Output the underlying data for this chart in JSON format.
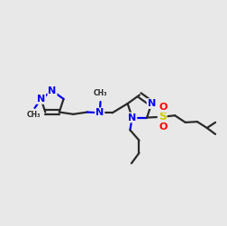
{
  "bg_color": "#e8e8e8",
  "bond_color": "#2a2a2a",
  "N_color": "#0000ee",
  "S_color": "#cccc00",
  "O_color": "#ff0000",
  "bond_width": 1.6
}
